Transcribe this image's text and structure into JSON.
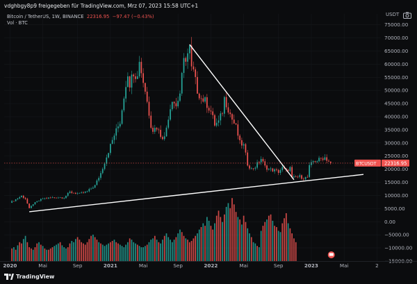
{
  "header": {
    "attribution": "vdghbgy8p9 freigegeben für TradingView.com, Mrz 07, 2023 15:58 UTC+1",
    "currency": "USDT"
  },
  "legend": {
    "symbol_text": "Bitcoin / TetherUS, 1W, BINANCE",
    "price": "22316.95",
    "change": "−97.47 (−0.43%)",
    "volume_label": "Vol · BTC"
  },
  "footer": {
    "brand": "TradingView"
  },
  "colors": {
    "up": "#26a69a",
    "down": "#ef5350",
    "line": "#ffffff",
    "bg": "#0b0c0e",
    "grid": "#16181c"
  },
  "chart_data": {
    "type": "candlestick",
    "title": "Bitcoin / TetherUS, 1W, BINANCE",
    "yaxis_ticks": [
      75000,
      70000,
      65000,
      60000,
      55000,
      50000,
      45000,
      40000,
      35000,
      30000,
      25000,
      20000,
      15000,
      10000,
      5000,
      0,
      -5000,
      -10000,
      -15000
    ],
    "yaxis_tick_labels": [
      "75000.00",
      "70000.00",
      "65000.00",
      "60000.00",
      "55000.00",
      "50000.00",
      "45000.00",
      "40000.00",
      "35000.00",
      "30000.00",
      "25000.00",
      "20000.00",
      "15000.00",
      "10000.00",
      "5000.00",
      "0.00",
      "−5000.00",
      "−10000.00",
      "−15000.00"
    ],
    "ylim": [
      -15000,
      76500
    ],
    "xaxis_labels": [
      {
        "label": "2020",
        "week": 0,
        "bold": true
      },
      {
        "label": "Mai",
        "week": 17
      },
      {
        "label": "Sep",
        "week": 35
      },
      {
        "label": "2021",
        "week": 52,
        "bold": true
      },
      {
        "label": "Mai",
        "week": 69
      },
      {
        "label": "Sep",
        "week": 87
      },
      {
        "label": "2022",
        "week": 104,
        "bold": true
      },
      {
        "label": "Mai",
        "week": 121
      },
      {
        "label": "Sep",
        "week": 139
      },
      {
        "label": "2023",
        "week": 156,
        "bold": true
      },
      {
        "label": "Mai",
        "week": 173
      },
      {
        "label": "2",
        "week": 190
      }
    ],
    "x_range_weeks": [
      -3,
      192
    ],
    "price_path": [
      [
        0,
        7200
      ],
      [
        6,
        9800
      ],
      [
        8,
        8800
      ],
      [
        10,
        5000
      ],
      [
        12,
        6800
      ],
      [
        17,
        8800
      ],
      [
        24,
        9300
      ],
      [
        28,
        9200
      ],
      [
        31,
        11300
      ],
      [
        36,
        10600
      ],
      [
        40,
        11500
      ],
      [
        44,
        13800
      ],
      [
        47,
        18500
      ],
      [
        52,
        29000
      ],
      [
        54,
        33000
      ],
      [
        57,
        38000
      ],
      [
        59,
        48000
      ],
      [
        61,
        57000
      ],
      [
        62,
        50000
      ],
      [
        63,
        58000
      ],
      [
        66,
        55000
      ],
      [
        67,
        62000
      ],
      [
        68,
        57000
      ],
      [
        70,
        50000
      ],
      [
        73,
        37000
      ],
      [
        74,
        35000
      ],
      [
        76,
        36000
      ],
      [
        78,
        33000
      ],
      [
        80,
        32000
      ],
      [
        82,
        40000
      ],
      [
        84,
        47000
      ],
      [
        86,
        44000
      ],
      [
        88,
        49000
      ],
      [
        90,
        61000
      ],
      [
        92,
        64000
      ],
      [
        93,
        66000
      ],
      [
        94,
        58000
      ],
      [
        95,
        57000
      ],
      [
        97,
        50000
      ],
      [
        99,
        47000
      ],
      [
        101,
        46000
      ],
      [
        104,
        42000
      ],
      [
        106,
        37000
      ],
      [
        108,
        38000
      ],
      [
        110,
        42000
      ],
      [
        111,
        47000
      ],
      [
        113,
        43000
      ],
      [
        115,
        39000
      ],
      [
        117,
        36000
      ],
      [
        119,
        30000
      ],
      [
        121,
        29000
      ],
      [
        123,
        22000
      ],
      [
        125,
        20000
      ],
      [
        127,
        21000
      ],
      [
        129,
        23000
      ],
      [
        130,
        24000
      ],
      [
        132,
        21000
      ],
      [
        134,
        20000
      ],
      [
        137,
        19500
      ],
      [
        139,
        19000
      ],
      [
        141,
        20500
      ],
      [
        143,
        19300
      ],
      [
        145,
        20500
      ],
      [
        146,
        16500
      ],
      [
        148,
        17000
      ],
      [
        150,
        17200
      ],
      [
        152,
        16600
      ],
      [
        154,
        17000
      ],
      [
        155,
        21000
      ],
      [
        157,
        23000
      ],
      [
        159,
        23300
      ],
      [
        161,
        24000
      ],
      [
        163,
        24500
      ],
      [
        165,
        23000
      ],
      [
        166,
        22317
      ]
    ],
    "volume_band_range": [
      -15000,
      9000
    ],
    "volume_heights_pct": [
      20,
      22,
      18,
      25,
      30,
      28,
      35,
      40,
      30,
      22,
      20,
      18,
      22,
      28,
      30,
      26,
      24,
      20,
      18,
      18,
      20,
      22,
      24,
      26,
      28,
      30,
      25,
      22,
      20,
      22,
      28,
      32,
      30,
      35,
      38,
      34,
      30,
      28,
      26,
      30,
      35,
      40,
      42,
      38,
      34,
      30,
      28,
      26,
      24,
      26,
      28,
      30,
      32,
      34,
      30,
      28,
      26,
      24,
      22,
      26,
      30,
      36,
      34,
      30,
      28,
      26,
      24,
      22,
      22,
      24,
      26,
      30,
      34,
      36,
      40,
      34,
      30,
      28,
      34,
      40,
      44,
      38,
      34,
      30,
      34,
      38,
      44,
      50,
      46,
      40,
      36,
      34,
      30,
      32,
      36,
      40,
      44,
      50,
      54,
      60,
      56,
      70,
      64,
      56,
      50,
      60,
      72,
      80,
      70,
      62,
      74,
      86,
      92,
      84,
      100,
      90,
      78,
      70,
      66,
      58,
      72,
      62,
      52,
      44,
      38,
      30,
      28,
      24,
      22,
      48,
      56,
      62,
      66,
      72,
      74,
      64,
      56,
      54,
      48,
      46,
      60,
      68,
      76,
      60,
      52,
      44,
      36,
      30
    ],
    "current_price": 22316.95,
    "current_price_label": "BTCUSDT",
    "current_price_text": "22316.95",
    "trendlines": [
      {
        "name": "descending-resistance",
        "from": {
          "week": 93,
          "price": 67500
        },
        "to": {
          "week": 147,
          "price": 16000
        }
      },
      {
        "name": "ascending-support",
        "from": {
          "week": 10,
          "price": 3800
        },
        "to": {
          "week": 183,
          "price": 18000
        }
      }
    ],
    "indicator": "BTC volume (Vol · BTC)"
  }
}
